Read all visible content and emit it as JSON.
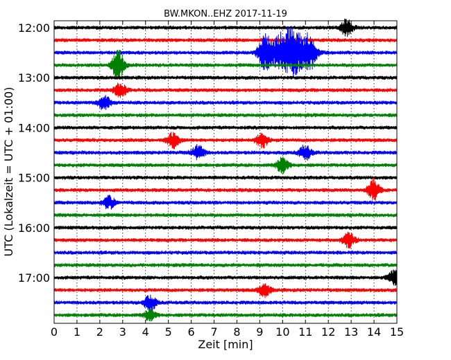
{
  "chart_data": {
    "type": "line",
    "title": "BW.MKON..EHZ 2017-11-19",
    "xlabel": "Zeit  [min]",
    "ylabel": "UTC (Lokalzeit = UTC + 01:00)",
    "xlim": [
      0,
      15
    ],
    "x_ticks": [
      "0",
      "1",
      "2",
      "3",
      "4",
      "5",
      "6",
      "7",
      "8",
      "9",
      "10",
      "11",
      "12",
      "13",
      "14",
      "15"
    ],
    "y_ticks": [
      {
        "label": "12:00",
        "row": 0
      },
      {
        "label": "13:00",
        "row": 4
      },
      {
        "label": "14:00",
        "row": 8
      },
      {
        "label": "15:00",
        "row": 12
      },
      {
        "label": "16:00",
        "row": 16
      },
      {
        "label": "17:00",
        "row": 20
      }
    ],
    "grid": true,
    "minutes_per_row": 15,
    "row_colors": [
      "#000000",
      "#ff0000",
      "#0000ff",
      "#008000"
    ],
    "traces": [
      {
        "start": "12:00",
        "color": "#000000",
        "events": [
          {
            "t": 12.8,
            "amp": 0.35
          }
        ]
      },
      {
        "start": "12:15",
        "color": "#ff0000",
        "events": []
      },
      {
        "start": "12:30",
        "color": "#0000ff",
        "events": [
          {
            "t": 9.2,
            "amp": 0.6
          },
          {
            "t": 10.3,
            "amp": 1.0
          },
          {
            "t": 11.2,
            "amp": 0.5
          }
        ]
      },
      {
        "start": "12:45",
        "color": "#008000",
        "events": [
          {
            "t": 2.8,
            "amp": 0.6
          }
        ]
      },
      {
        "start": "13:00",
        "color": "#000000",
        "events": []
      },
      {
        "start": "13:15",
        "color": "#ff0000",
        "events": [
          {
            "t": 2.9,
            "amp": 0.3
          }
        ]
      },
      {
        "start": "13:30",
        "color": "#0000ff",
        "events": [
          {
            "t": 2.2,
            "amp": 0.3
          }
        ]
      },
      {
        "start": "13:45",
        "color": "#008000",
        "events": []
      },
      {
        "start": "14:00",
        "color": "#000000",
        "events": []
      },
      {
        "start": "14:15",
        "color": "#ff0000",
        "events": [
          {
            "t": 5.2,
            "amp": 0.3
          },
          {
            "t": 9.1,
            "amp": 0.3
          }
        ]
      },
      {
        "start": "14:30",
        "color": "#0000ff",
        "events": [
          {
            "t": 6.3,
            "amp": 0.3
          },
          {
            "t": 11.0,
            "amp": 0.3
          }
        ]
      },
      {
        "start": "14:45",
        "color": "#008000",
        "events": [
          {
            "t": 10.0,
            "amp": 0.3
          }
        ]
      },
      {
        "start": "15:00",
        "color": "#000000",
        "events": []
      },
      {
        "start": "15:15",
        "color": "#ff0000",
        "events": [
          {
            "t": 14.0,
            "amp": 0.45
          }
        ]
      },
      {
        "start": "15:30",
        "color": "#0000ff",
        "events": [
          {
            "t": 2.4,
            "amp": 0.25
          }
        ]
      },
      {
        "start": "15:45",
        "color": "#008000",
        "events": []
      },
      {
        "start": "16:00",
        "color": "#000000",
        "events": []
      },
      {
        "start": "16:15",
        "color": "#ff0000",
        "events": [
          {
            "t": 12.9,
            "amp": 0.3
          }
        ]
      },
      {
        "start": "16:30",
        "color": "#0000ff",
        "events": []
      },
      {
        "start": "16:45",
        "color": "#008000",
        "events": []
      },
      {
        "start": "17:00",
        "color": "#000000",
        "events": [
          {
            "t": 14.9,
            "amp": 0.3
          }
        ]
      },
      {
        "start": "17:15",
        "color": "#ff0000",
        "events": [
          {
            "t": 9.2,
            "amp": 0.25
          }
        ]
      },
      {
        "start": "17:30",
        "color": "#0000ff",
        "events": [
          {
            "t": 4.2,
            "amp": 0.3
          }
        ]
      },
      {
        "start": "17:45",
        "color": "#008000",
        "events": [
          {
            "t": 4.2,
            "amp": 0.2
          }
        ]
      }
    ]
  }
}
